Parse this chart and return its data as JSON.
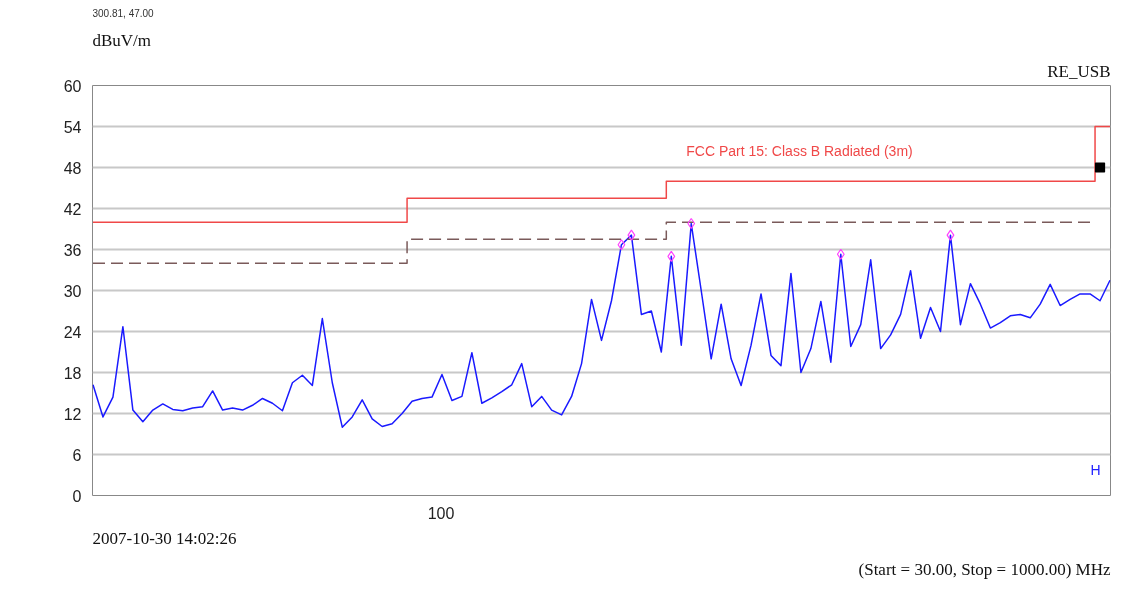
{
  "chart_data": {
    "type": "line",
    "title": "RE_USB",
    "ylabel": "dBuV/m",
    "grid": "y",
    "categories": [
      null,
      null,
      null,
      null,
      null,
      null,
      null,
      null,
      null,
      null,
      null,
      null,
      null,
      null,
      null,
      null,
      null,
      null,
      null,
      null,
      null,
      null,
      null,
      null,
      null,
      null,
      null,
      null,
      null,
      null,
      null,
      null,
      null,
      null,
      null,
      null,
      null,
      null,
      null,
      null,
      null,
      null,
      null,
      null,
      null,
      null,
      null,
      null,
      null,
      null,
      null,
      null,
      null,
      null,
      null,
      null,
      null,
      null,
      null,
      null,
      null,
      null,
      null,
      null,
      null,
      null,
      null,
      null,
      null,
      null,
      null,
      null,
      null,
      null,
      null,
      null,
      null,
      null,
      null,
      null,
      null,
      null,
      null,
      null,
      null,
      null,
      null,
      null,
      null,
      null,
      null,
      null,
      null,
      null,
      null,
      null,
      null,
      null,
      null,
      null,
      null,
      null,
      null
    ],
    "ylim": [
      0,
      60
    ],
    "yticks": [
      0,
      6,
      12,
      18,
      24,
      30,
      36,
      42,
      48,
      54,
      60
    ],
    "annotations": [
      "300.81, 47.00",
      "2007-10-30 14:02:26",
      "(Start = 30.00, Stop = 1000.00) MHz",
      "H",
      "100"
    ],
    "series": [
      {
        "color": "#1a1aff",
        "values": [
          16.2,
          11.5,
          14.4,
          24.7,
          12.5,
          10.8,
          12.5,
          13.4,
          12.6,
          12.4,
          12.8,
          13.0,
          15.3,
          12.5,
          12.8,
          12.5,
          13.2,
          14.2,
          13.5,
          12.4,
          16.5,
          17.6,
          16.1,
          25.9,
          16.5,
          10.0,
          11.5,
          14.0,
          11.2,
          10.1,
          10.5,
          12.0,
          13.8,
          14.2,
          14.4,
          17.7,
          13.9,
          14.5,
          20.9,
          13.5,
          14.3,
          15.2,
          16.2,
          19.3,
          13.0,
          14.5,
          12.5,
          11.8,
          14.5,
          19.3,
          28.7,
          22.7,
          28.5,
          36.7,
          38.1,
          26.5,
          27.0,
          21.0,
          35.0,
          22.0,
          39.8,
          30.0,
          20.0,
          28.0,
          20.0,
          16.1,
          22.0,
          29.5,
          20.5,
          19.0,
          32.5,
          18.0,
          21.5,
          28.4,
          19.5,
          35.3,
          21.8,
          25.0,
          34.5,
          21.5,
          23.5,
          26.5,
          32.9,
          23.0,
          27.5,
          24.0,
          38.1,
          25.0,
          31.0,
          28.0,
          24.5,
          25.3,
          26.3,
          26.5,
          26.0,
          28.0,
          30.9,
          27.8,
          28.7,
          29.5,
          29.5,
          28.5,
          31.5
        ]
      },
      {
        "type": "step",
        "name": "FCC Part 15: Class B Radiated (3m)",
        "color": "#f04848",
        "values": [
          40,
          40,
          40,
          40,
          40,
          40,
          40,
          40,
          40,
          40,
          40,
          40,
          40,
          40,
          40,
          40,
          40,
          40,
          40,
          40,
          40,
          40,
          40,
          40,
          40,
          40,
          40,
          40,
          40,
          40,
          40,
          40,
          43.5,
          43.5,
          43.5,
          43.5,
          43.5,
          43.5,
          43.5,
          43.5,
          43.5,
          43.5,
          43.5,
          43.5,
          43.5,
          43.5,
          43.5,
          43.5,
          43.5,
          43.5,
          43.5,
          43.5,
          43.5,
          43.5,
          43.5,
          43.5,
          43.5,
          43.5,
          46,
          46,
          46,
          46,
          46,
          46,
          46,
          46,
          46,
          46,
          46,
          46,
          46,
          46,
          46,
          46,
          46,
          46,
          46,
          46,
          46,
          46,
          46,
          46,
          46,
          46,
          46,
          46,
          46,
          46,
          46,
          46,
          46,
          46,
          46,
          46,
          46,
          46,
          46,
          46,
          46,
          46,
          46,
          54,
          54
        ]
      },
      {
        "type": "step",
        "color": "#7a5a5a",
        "line_style": "dashed",
        "values": [
          34,
          34,
          34,
          34,
          34,
          34,
          34,
          34,
          34,
          34,
          34,
          34,
          34,
          34,
          34,
          34,
          34,
          34,
          34,
          34,
          34,
          34,
          34,
          34,
          34,
          34,
          34,
          34,
          34,
          34,
          34,
          34,
          37.5,
          37.5,
          37.5,
          37.5,
          37.5,
          37.5,
          37.5,
          37.5,
          37.5,
          37.5,
          37.5,
          37.5,
          37.5,
          37.5,
          37.5,
          37.5,
          37.5,
          37.5,
          37.5,
          37.5,
          37.5,
          37.5,
          37.5,
          37.5,
          37.5,
          37.5,
          40,
          40,
          40,
          40,
          40,
          40,
          40,
          40,
          40,
          40,
          40,
          40,
          40,
          40,
          40,
          40,
          40,
          40,
          40,
          40,
          40,
          40,
          40,
          40,
          40,
          40,
          40,
          40,
          40,
          40,
          40,
          40,
          40,
          40,
          40,
          40,
          40,
          40,
          40,
          40,
          40,
          40,
          40,
          null,
          null
        ]
      },
      {
        "type": "scatter",
        "marker": "diamond",
        "color": "#ff40ff",
        "values": [
          null,
          null,
          null,
          null,
          null,
          null,
          null,
          null,
          null,
          null,
          null,
          null,
          null,
          null,
          null,
          null,
          null,
          null,
          null,
          null,
          null,
          null,
          null,
          null,
          null,
          null,
          null,
          null,
          null,
          null,
          null,
          null,
          null,
          null,
          null,
          null,
          null,
          null,
          null,
          null,
          null,
          null,
          null,
          null,
          null,
          null,
          null,
          null,
          null,
          null,
          null,
          null,
          null,
          36.7,
          38.1,
          null,
          null,
          null,
          35.0,
          null,
          39.8,
          null,
          null,
          null,
          null,
          null,
          null,
          null,
          null,
          null,
          null,
          null,
          null,
          null,
          null,
          35.3,
          null,
          null,
          null,
          null,
          null,
          null,
          null,
          null,
          null,
          null,
          38.1,
          null,
          null,
          null,
          null,
          null,
          null,
          null,
          null,
          null,
          null,
          null,
          null,
          null,
          null,
          null,
          null
        ]
      },
      {
        "type": "scatter",
        "marker": "square",
        "color": "#000000",
        "values": [
          null,
          null,
          null,
          null,
          null,
          null,
          null,
          null,
          null,
          null,
          null,
          null,
          null,
          null,
          null,
          null,
          null,
          null,
          null,
          null,
          null,
          null,
          null,
          null,
          null,
          null,
          null,
          null,
          null,
          null,
          null,
          null,
          null,
          null,
          null,
          null,
          null,
          null,
          null,
          null,
          null,
          null,
          null,
          null,
          null,
          null,
          null,
          null,
          null,
          null,
          null,
          null,
          null,
          null,
          null,
          null,
          null,
          null,
          null,
          null,
          null,
          null,
          null,
          null,
          null,
          null,
          null,
          null,
          null,
          null,
          null,
          null,
          null,
          null,
          null,
          null,
          null,
          null,
          null,
          null,
          null,
          null,
          null,
          null,
          null,
          null,
          null,
          null,
          null,
          null,
          null,
          null,
          null,
          null,
          null,
          null,
          null,
          null,
          null,
          null,
          null,
          48,
          null
        ]
      }
    ]
  }
}
